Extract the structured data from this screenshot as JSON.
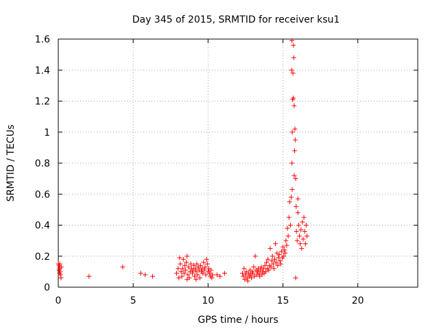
{
  "chart_data": {
    "type": "scatter",
    "title": "Day 345 of 2015, SRMTID for receiver ksu1",
    "xlabel": "GPS time / hours",
    "ylabel": "SRMTID / TECUs",
    "xlim": [
      0,
      24
    ],
    "ylim": [
      0,
      1.6
    ],
    "xticks": [
      0,
      5,
      10,
      15,
      20
    ],
    "xtick_labels": [
      "0",
      "5",
      "10",
      "15",
      "20"
    ],
    "yticks": [
      0,
      0.2,
      0.4,
      0.6,
      0.8,
      1,
      1.2,
      1.4,
      1.6
    ],
    "ytick_labels": [
      "0",
      "0.2",
      "0.4",
      "0.6",
      "0.8",
      "1",
      "1.2",
      "1.4",
      "1.6"
    ],
    "grid": true,
    "marker": "+",
    "color": "#ff0000",
    "series": [
      {
        "name": "SRMTID",
        "points": [
          [
            0.0,
            0.15
          ],
          [
            0.05,
            0.14
          ],
          [
            0.1,
            0.12
          ],
          [
            0.12,
            0.1
          ],
          [
            0.15,
            0.08
          ],
          [
            0.18,
            0.06
          ],
          [
            0.05,
            0.11
          ],
          [
            0.1,
            0.15
          ],
          [
            0.2,
            0.13
          ],
          [
            0.08,
            0.09
          ],
          [
            2.05,
            0.07
          ],
          [
            4.3,
            0.13
          ],
          [
            5.5,
            0.09
          ],
          [
            5.8,
            0.08
          ],
          [
            6.3,
            0.07
          ],
          [
            7.9,
            0.09
          ],
          [
            8.0,
            0.12
          ],
          [
            8.05,
            0.06
          ],
          [
            8.1,
            0.19
          ],
          [
            8.15,
            0.15
          ],
          [
            8.2,
            0.1
          ],
          [
            8.25,
            0.07
          ],
          [
            8.3,
            0.12
          ],
          [
            8.35,
            0.18
          ],
          [
            8.4,
            0.09
          ],
          [
            8.45,
            0.14
          ],
          [
            8.5,
            0.11
          ],
          [
            8.55,
            0.16
          ],
          [
            8.6,
            0.2
          ],
          [
            8.65,
            0.08
          ],
          [
            8.7,
            0.13
          ],
          [
            8.75,
            0.06
          ],
          [
            8.8,
            0.1
          ],
          [
            8.85,
            0.15
          ],
          [
            8.9,
            0.12
          ],
          [
            8.95,
            0.09
          ],
          [
            9.0,
            0.11
          ],
          [
            9.05,
            0.14
          ],
          [
            9.1,
            0.07
          ],
          [
            9.15,
            0.12
          ],
          [
            9.2,
            0.1
          ],
          [
            9.25,
            0.15
          ],
          [
            9.3,
            0.08
          ],
          [
            9.35,
            0.13
          ],
          [
            9.4,
            0.11
          ],
          [
            9.45,
            0.06
          ],
          [
            9.5,
            0.14
          ],
          [
            9.55,
            0.1
          ],
          [
            9.6,
            0.12
          ],
          [
            9.65,
            0.09
          ],
          [
            9.7,
            0.16
          ],
          [
            9.75,
            0.11
          ],
          [
            9.8,
            0.13
          ],
          [
            9.85,
            0.08
          ],
          [
            9.9,
            0.18
          ],
          [
            9.95,
            0.15
          ],
          [
            10.0,
            0.1
          ],
          [
            10.05,
            0.12
          ],
          [
            10.1,
            0.09
          ],
          [
            10.15,
            0.07
          ],
          [
            10.2,
            0.11
          ],
          [
            10.25,
            0.06
          ],
          [
            10.3,
            0.08
          ],
          [
            8.6,
            0.05
          ],
          [
            9.2,
            0.05
          ],
          [
            10.6,
            0.08
          ],
          [
            10.8,
            0.07
          ],
          [
            11.1,
            0.09
          ],
          [
            12.3,
            0.09
          ],
          [
            12.35,
            0.07
          ],
          [
            12.4,
            0.12
          ],
          [
            12.45,
            0.05
          ],
          [
            12.5,
            0.08
          ],
          [
            12.55,
            0.1
          ],
          [
            12.6,
            0.06
          ],
          [
            12.65,
            0.04
          ],
          [
            12.7,
            0.09
          ],
          [
            12.75,
            0.07
          ],
          [
            12.8,
            0.11
          ],
          [
            12.85,
            0.08
          ],
          [
            12.9,
            0.06
          ],
          [
            12.95,
            0.1
          ],
          [
            13.0,
            0.09
          ],
          [
            13.05,
            0.13
          ],
          [
            13.1,
            0.07
          ],
          [
            13.15,
            0.2
          ],
          [
            13.2,
            0.11
          ],
          [
            13.25,
            0.08
          ],
          [
            13.3,
            0.1
          ],
          [
            13.35,
            0.12
          ],
          [
            13.4,
            0.09
          ],
          [
            13.45,
            0.07
          ],
          [
            13.5,
            0.11
          ],
          [
            13.55,
            0.13
          ],
          [
            13.6,
            0.08
          ],
          [
            13.65,
            0.1
          ],
          [
            13.7,
            0.12
          ],
          [
            13.75,
            0.09
          ],
          [
            13.8,
            0.14
          ],
          [
            13.85,
            0.1
          ],
          [
            13.9,
            0.16
          ],
          [
            13.95,
            0.12
          ],
          [
            14.0,
            0.18
          ],
          [
            14.05,
            0.11
          ],
          [
            14.1,
            0.14
          ],
          [
            14.15,
            0.25
          ],
          [
            14.2,
            0.13
          ],
          [
            14.25,
            0.17
          ],
          [
            14.3,
            0.2
          ],
          [
            14.35,
            0.15
          ],
          [
            14.4,
            0.12
          ],
          [
            14.45,
            0.18
          ],
          [
            14.5,
            0.28
          ],
          [
            14.55,
            0.16
          ],
          [
            14.6,
            0.22
          ],
          [
            14.65,
            0.14
          ],
          [
            14.7,
            0.19
          ],
          [
            14.75,
            0.21
          ],
          [
            14.8,
            0.17
          ],
          [
            14.85,
            0.15
          ],
          [
            14.9,
            0.23
          ],
          [
            14.95,
            0.19
          ],
          [
            15.0,
            0.26
          ],
          [
            15.05,
            0.2
          ],
          [
            15.1,
            0.24
          ],
          [
            15.15,
            0.22
          ],
          [
            15.2,
            0.3
          ],
          [
            15.25,
            0.27
          ],
          [
            15.3,
            0.38
          ],
          [
            15.35,
            0.33
          ],
          [
            15.4,
            0.45
          ],
          [
            15.45,
            0.55
          ],
          [
            15.5,
            0.4
          ],
          [
            15.55,
            0.58
          ],
          [
            15.6,
            0.8
          ],
          [
            15.62,
            1.0
          ],
          [
            15.65,
            1.21
          ],
          [
            15.67,
            1.38
          ],
          [
            15.7,
            1.56
          ],
          [
            15.72,
            1.48
          ],
          [
            15.75,
            0.72
          ],
          [
            15.78,
            0.88
          ],
          [
            15.8,
            1.02
          ],
          [
            15.82,
            0.95
          ],
          [
            15.85,
            0.7
          ],
          [
            15.88,
            0.52
          ],
          [
            15.9,
            0.36
          ],
          [
            15.95,
            0.3
          ],
          [
            16.0,
            0.48
          ],
          [
            16.05,
            0.4
          ],
          [
            16.1,
            0.33
          ],
          [
            16.15,
            0.28
          ],
          [
            16.2,
            0.37
          ],
          [
            16.25,
            0.25
          ],
          [
            16.3,
            0.42
          ],
          [
            16.35,
            0.31
          ],
          [
            16.4,
            0.45
          ],
          [
            16.45,
            0.36
          ],
          [
            16.5,
            0.28
          ],
          [
            16.55,
            0.4
          ],
          [
            16.6,
            0.33
          ],
          [
            15.6,
            1.59
          ],
          [
            15.58,
            1.4
          ],
          [
            15.62,
            0.63
          ],
          [
            15.7,
            1.22
          ],
          [
            15.75,
            1.17
          ],
          [
            16.0,
            0.57
          ],
          [
            15.85,
            0.06
          ]
        ]
      }
    ]
  }
}
